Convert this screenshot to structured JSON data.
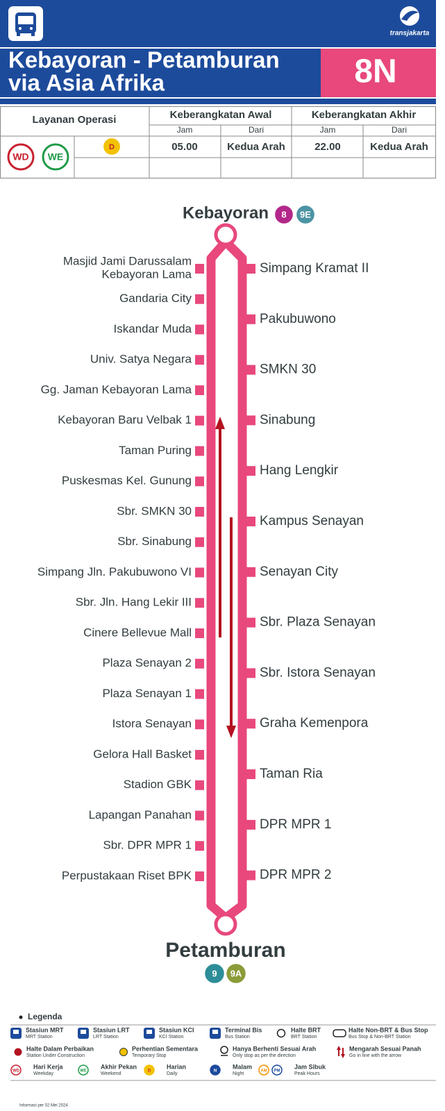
{
  "header": {
    "title_line1": "Kebayoran - Petamburan",
    "title_line2": "via Asia Afrika",
    "route_code": "8N",
    "brand": "transjakarta"
  },
  "schedule": {
    "service_label": "Layanan Operasi",
    "first_departure": "Keberangkatan Awal",
    "last_departure": "Keberangkatan Akhir",
    "subheaders": [
      "Jam",
      "Dari",
      "Jam",
      "Dari"
    ],
    "badges": [
      "WD",
      "WE",
      "D"
    ],
    "first_time": "05.00",
    "first_from": "Kedua Arah",
    "last_time": "22.00",
    "last_from": "Kedua Arah"
  },
  "route": {
    "start": {
      "name": "Kebayoran",
      "connections": [
        "8",
        "9E"
      ]
    },
    "end": {
      "name": "Petamburan",
      "connections": [
        "9",
        "9A"
      ]
    },
    "left_stops": [
      [
        "Masjid Jami Darussalam",
        "Kebayoran Lama"
      ],
      "Gandaria City",
      "Iskandar Muda",
      "Univ. Satya Negara",
      "Gg. Jaman Kebayoran Lama",
      "Kebayoran Baru Velbak 1",
      "Taman Puring",
      "Puskesmas Kel. Gunung",
      "Sbr. SMKN 30",
      "Sbr. Sinabung",
      "Simpang Jln. Pakubuwono VI",
      "Sbr. Jln. Hang Lekir III",
      "Cinere Bellevue Mall",
      "Plaza Senayan 2",
      "Plaza Senayan 1",
      "Istora Senayan",
      "Gelora Hall Basket",
      "Stadion GBK",
      "Lapangan Panahan",
      "Sbr. DPR MPR 1",
      "Perpustakaan Riset BPK"
    ],
    "right_stops": [
      "Simpang Kramat II",
      "Pakubuwono",
      "SMKN 30",
      "Sinabung",
      "Hang Lengkir",
      "Kampus Senayan",
      "Senayan City",
      "Sbr. Plaza Senayan",
      "Sbr. Istora Senayan",
      "Graha Kemenpora",
      "Taman Ria",
      "DPR MPR 1",
      "DPR MPR 2"
    ]
  },
  "legend": {
    "title": "Legenda",
    "items": [
      {
        "label": "Stasiun MRT",
        "sublabel": "MRT Station"
      },
      {
        "label": "Stasiun LRT",
        "sublabel": "LRT Station"
      },
      {
        "label": "Stasiun KCI",
        "sublabel": "KCI Station"
      },
      {
        "label": "Terminal Bis",
        "sublabel": "Bus Station"
      },
      {
        "label": "Halte BRT",
        "sublabel": "BRT Station"
      },
      {
        "label": "Halte Non-BRT & Bus Stop",
        "sublabel": "Bus Stop & Non-BRT Station"
      },
      {
        "label": "Halte Dalam Perbaikan",
        "sublabel": "Station Under Construction"
      },
      {
        "label": "Perhentian Sementara",
        "sublabel": "Temporary Stop"
      },
      {
        "label": "Hanya Berhenti Sesuai Arah",
        "sublabel": "Only stop as per the direction"
      },
      {
        "label": "Mengarah Sesuai Panah",
        "sublabel": "Go in line with the arrow"
      },
      {
        "label": "Hari Kerja",
        "sublabel": "Weekday",
        "icons": [
          "WD"
        ]
      },
      {
        "label": "Akhir Pekan",
        "sublabel": "Weekend",
        "icons": [
          "WE"
        ]
      },
      {
        "label": "Harian",
        "sublabel": "Daily",
        "icons": [
          "D"
        ]
      },
      {
        "label": "Malam",
        "sublabel": "Night",
        "icons": [
          "N"
        ]
      },
      {
        "label": "Jam Sibuk",
        "sublabel": "Peak Hours",
        "icons": [
          "AM",
          "PM"
        ]
      }
    ]
  },
  "footer": "Informasi per 02 Mei 2024"
}
